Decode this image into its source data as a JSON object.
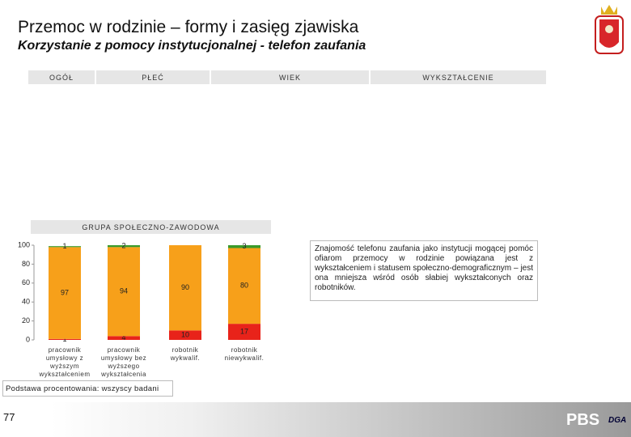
{
  "title": "Przemoc w rodzinie – formy i zasięg zjawiska",
  "subtitle": "Korzystanie z pomocy instytucjonalnej - telefon zaufania",
  "header": [
    "OGÓŁ",
    "PŁEĆ",
    "WIEK",
    "WYKSZTAŁCENIE"
  ],
  "group_label": "GRUPA SPOŁECZNO-ZAWODOWA",
  "note": "Znajomość telefonu zaufania jako instytucji mogącej pomóc ofiarom przemocy w rodzinie powiązana jest z wykształceniem i statusem społeczno-demograficznym – jest ona mniejsza wśród osób słabiej wykształconych oraz robotników.",
  "footnote": "Podstawa procentowania: wszyscy badani",
  "page_number": "77",
  "logo": "PBS",
  "logo2": "DGA",
  "chart_data": {
    "type": "stacked-bar",
    "categories": [
      "pracownik\numysłowy z\nwyższym\nwykształceniem",
      "pracownik\numysłowy bez\nwyższego\nwykształcenia",
      "robotnik\nwykwalif.",
      "robotnik\nniewykwalif."
    ],
    "series": [
      {
        "color": "#e8231a",
        "values": [
          1,
          4,
          10,
          17
        ]
      },
      {
        "color": "#f7a01a",
        "values": [
          97,
          94,
          90,
          80
        ]
      },
      {
        "color": "#3a9a2a",
        "values": [
          1,
          2,
          null,
          3
        ]
      }
    ],
    "ylim": [
      0,
      100
    ],
    "yticks": [
      0,
      20,
      40,
      60,
      80,
      100
    ],
    "grid": false
  }
}
